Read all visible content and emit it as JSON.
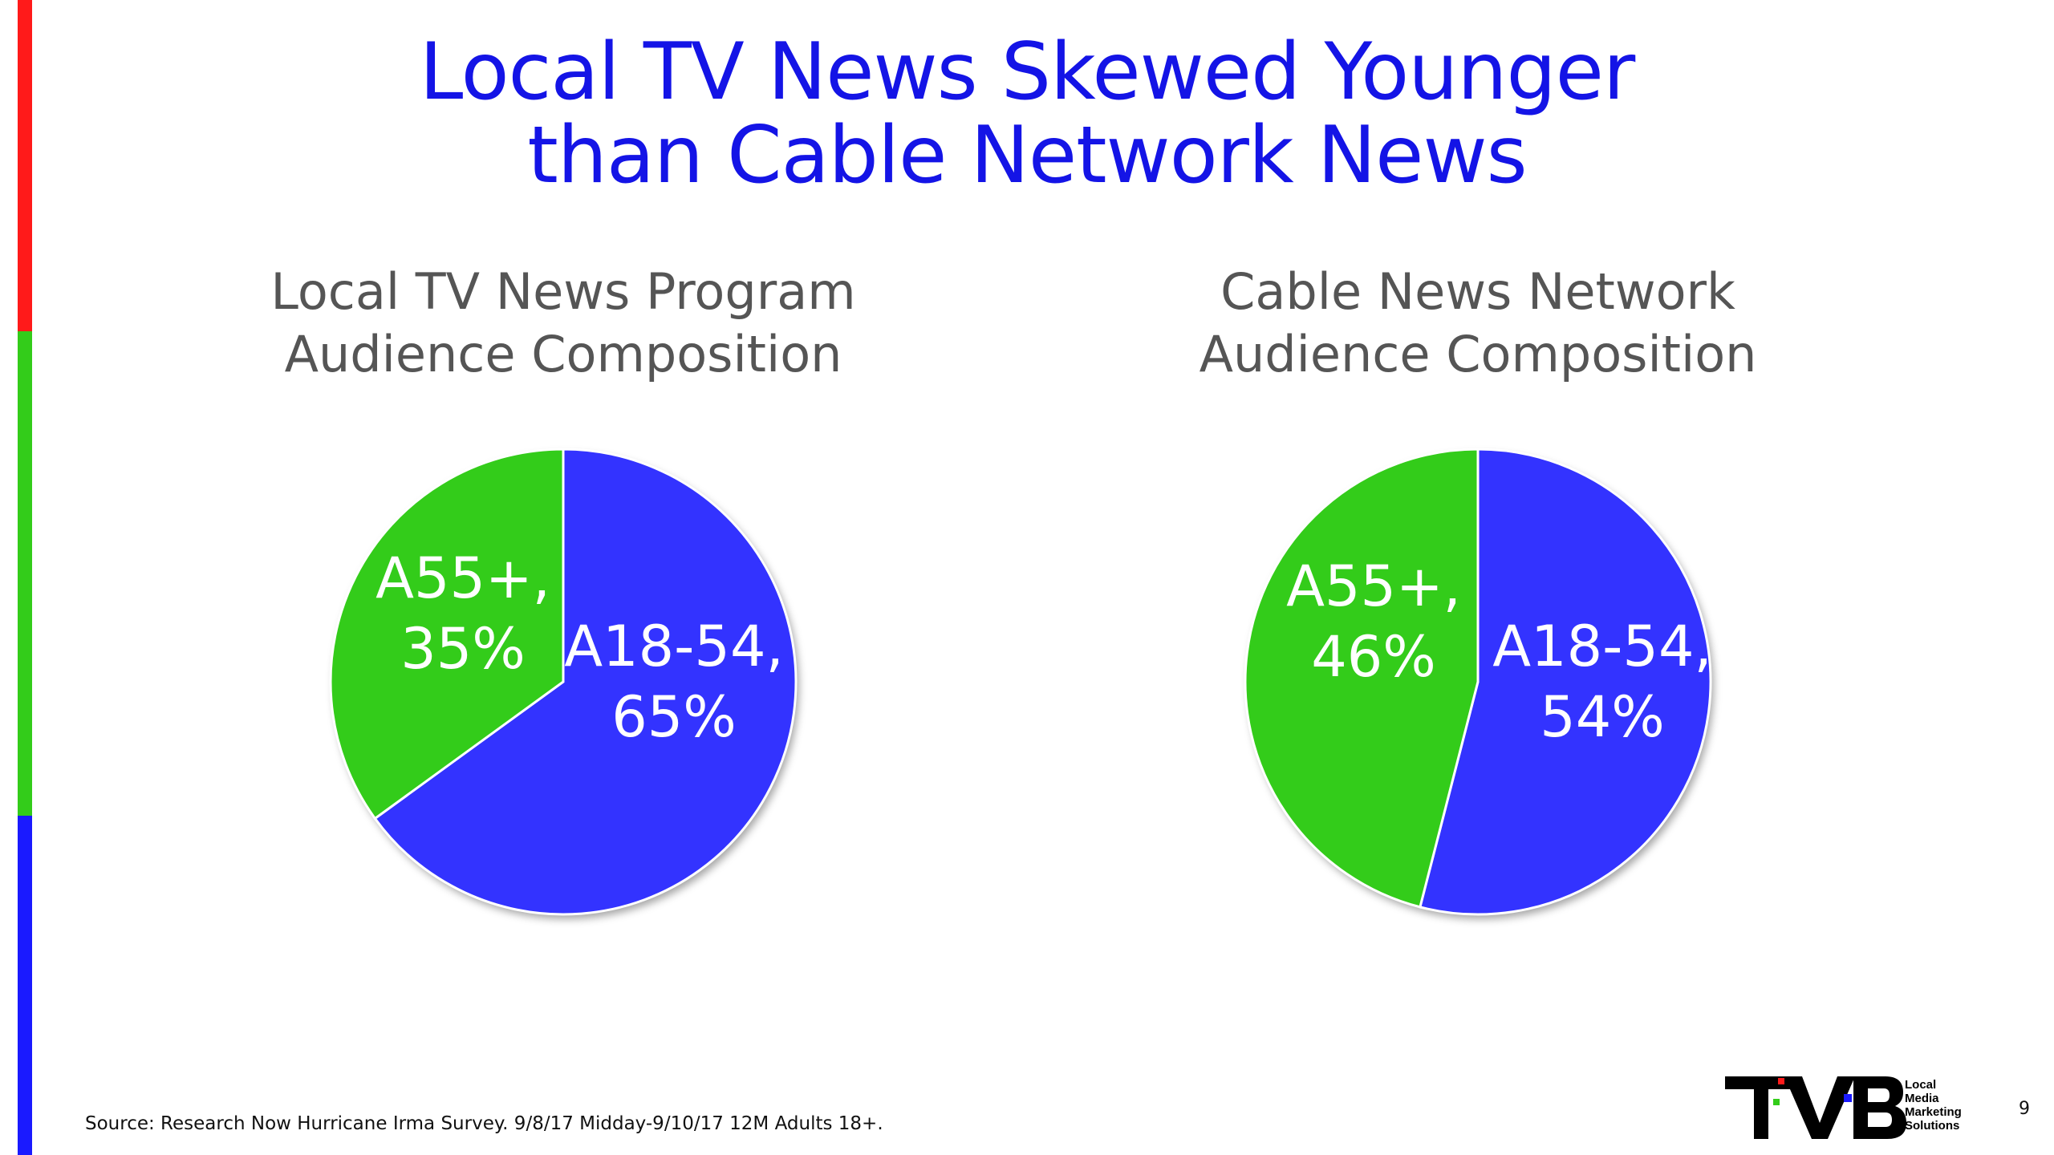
{
  "slide": {
    "title_line1": "Local TV News Skewed Younger",
    "title_line2": "than Cable Network News",
    "source": "Source: Research Now Hurricane Irma Survey. 9/8/17 Midday-9/10/17 12M Adults 18+.",
    "page_number": "9",
    "logo": {
      "letters": "TVB",
      "tagline": [
        "Local",
        "Media",
        "Marketing",
        "Solutions"
      ]
    },
    "accent_colors": [
      "#ff1a1a",
      "#33cc1a",
      "#1a1aff"
    ]
  },
  "chart_data": [
    {
      "type": "pie",
      "title_line1": "Local TV News Program",
      "title_line2": "Audience Composition",
      "slices": [
        {
          "label": "A18-54",
          "value": 65,
          "value_label": "65%",
          "color": "#3333ff"
        },
        {
          "label": "A55+",
          "value": 35,
          "value_label": "35%",
          "color": "#33cc1a"
        }
      ]
    },
    {
      "type": "pie",
      "title_line1": "Cable News Network",
      "title_line2": "Audience Composition",
      "slices": [
        {
          "label": "A18-54",
          "value": 54,
          "value_label": "54%",
          "color": "#3333ff"
        },
        {
          "label": "A55+",
          "value": 46,
          "value_label": "46%",
          "color": "#33cc1a"
        }
      ]
    }
  ]
}
